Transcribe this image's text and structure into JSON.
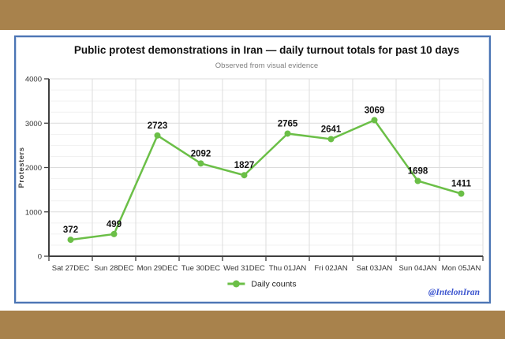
{
  "page": {
    "watermark": "@IntelonIran"
  },
  "chart_data": {
    "type": "line",
    "title": "Public protest demonstrations in Iran — daily turnout totals for past 10 days",
    "subtitle": "Observed from visual evidence",
    "ylabel": "Protesters",
    "categories": [
      "Sat 27DEC",
      "Sun 28DEC",
      "Mon 29DEC",
      "Tue 30DEC",
      "Wed 31DEC",
      "Thu 01JAN",
      "Fri 02JAN",
      "Sat 03JAN",
      "Sun 04JAN",
      "Mon 05JAN"
    ],
    "series": [
      {
        "name": "Daily counts",
        "values": [
          372,
          499,
          2723,
          2092,
          1827,
          2765,
          2641,
          3069,
          1698,
          1411
        ]
      }
    ],
    "ylim": [
      0,
      4000
    ],
    "yticks": [
      0,
      1000,
      2000,
      3000,
      4000
    ],
    "y_minor_step": 250,
    "grid": true,
    "legend_position": "bottom",
    "show_data_labels": true,
    "colors": {
      "line": "#6bbf47",
      "marker": "#6bbf47",
      "axis": "#3f3f3f",
      "grid_major": "#dcdcdc",
      "grid_minor": "#f1f1f1",
      "data_label": "#111111",
      "tick_label": "#333333",
      "panel_border": "#4a74b4",
      "frame": "#a8824c",
      "subtitle": "#808080",
      "watermark": "#3c55cf"
    }
  }
}
